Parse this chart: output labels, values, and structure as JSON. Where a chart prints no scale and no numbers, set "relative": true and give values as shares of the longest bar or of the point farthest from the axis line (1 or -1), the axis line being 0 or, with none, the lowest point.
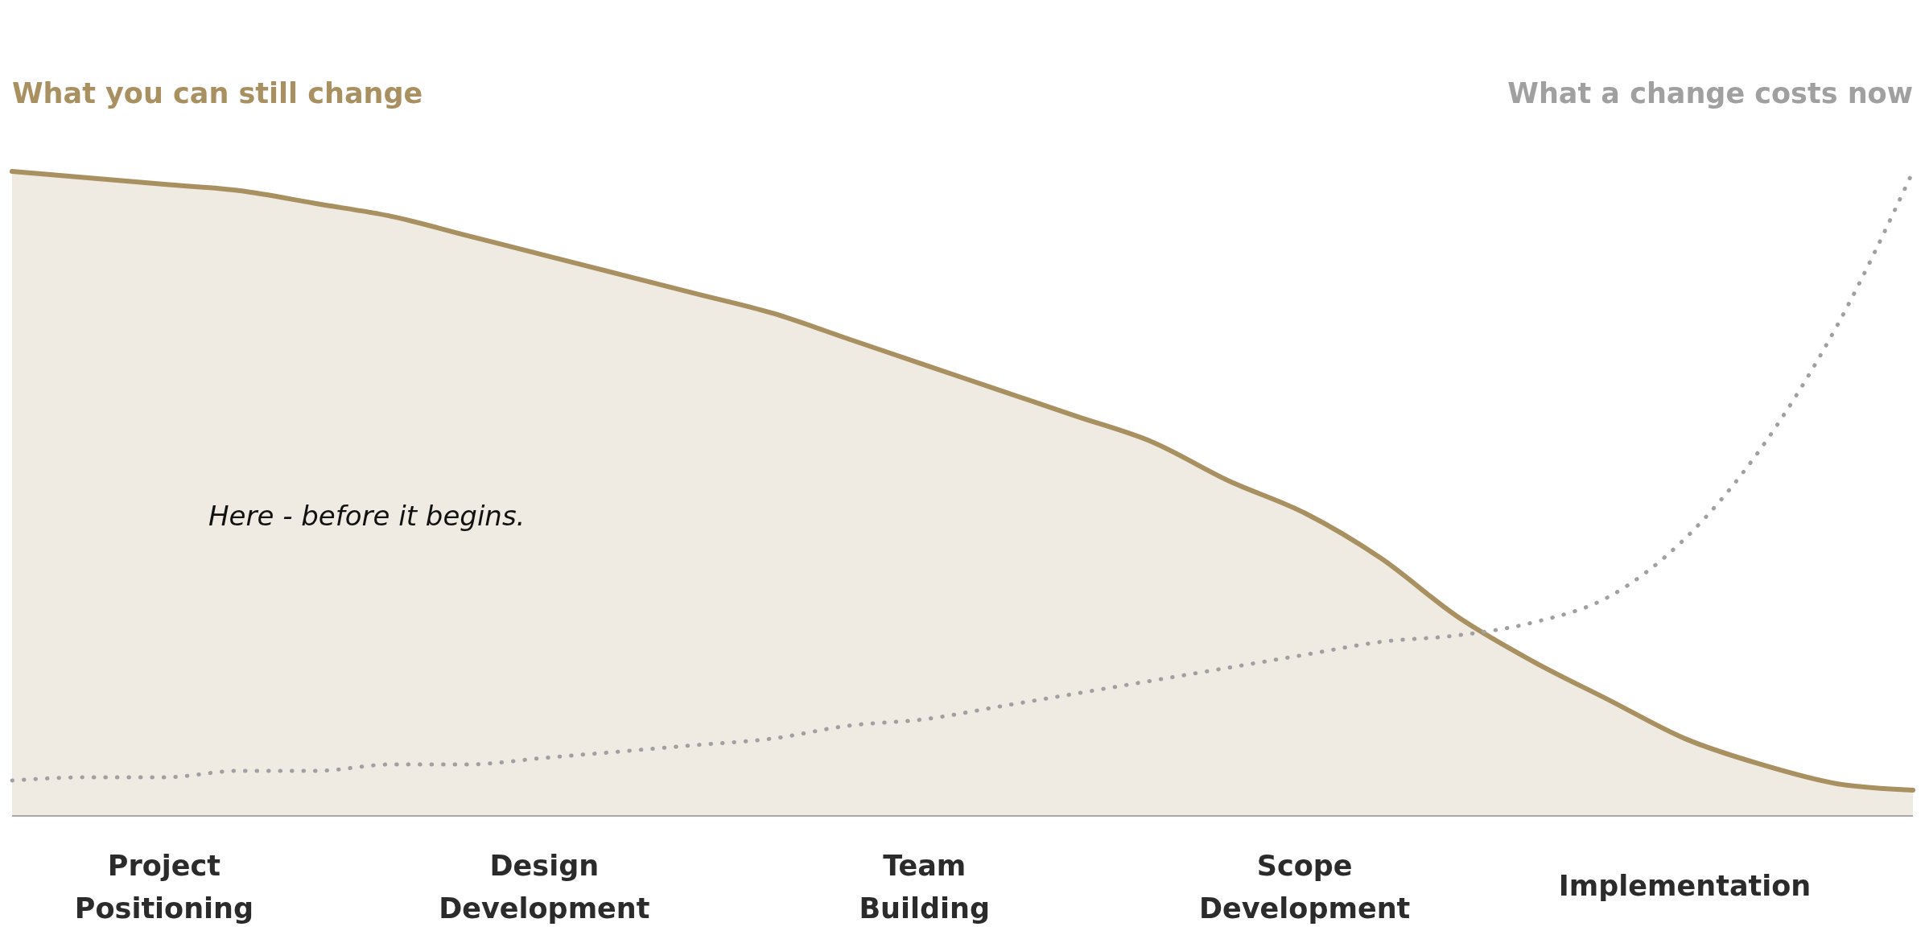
{
  "chart_data": {
    "type": "area",
    "relative": true,
    "legend": "top",
    "line_style": "solid",
    "categories": [
      null,
      null,
      "Project Positioning",
      null,
      null,
      null,
      null,
      "Design Development",
      null,
      null,
      null,
      null,
      "Team Building",
      null,
      null,
      null,
      null,
      "Scope Development",
      null,
      null,
      null,
      null,
      "Implementation",
      null,
      null,
      null
    ],
    "series": [
      {
        "name": "What you can still change",
        "color": "#a89060",
        "values": [
          1.0,
          0.99,
          0.98,
          0.97,
          0.95,
          0.93,
          0.9,
          0.87,
          0.84,
          0.81,
          0.78,
          0.74,
          0.7,
          0.66,
          0.62,
          0.58,
          0.52,
          0.47,
          0.4,
          0.31,
          0.24,
          0.18,
          0.12,
          0.08,
          0.05,
          0.04
        ]
      },
      {
        "name": "What a change costs now",
        "type": "line",
        "line_style": "dotted",
        "color": "#a0a0a0",
        "values": [
          0.055,
          0.06,
          0.06,
          0.07,
          0.07,
          0.08,
          0.08,
          0.09,
          0.1,
          0.11,
          0.12,
          0.14,
          0.15,
          0.17,
          0.19,
          0.21,
          0.23,
          0.25,
          0.27,
          0.28,
          0.3,
          0.34,
          0.43,
          0.57,
          0.76,
          1.0
        ]
      }
    ],
    "annotations": [
      "Here - before it begins."
    ]
  }
}
